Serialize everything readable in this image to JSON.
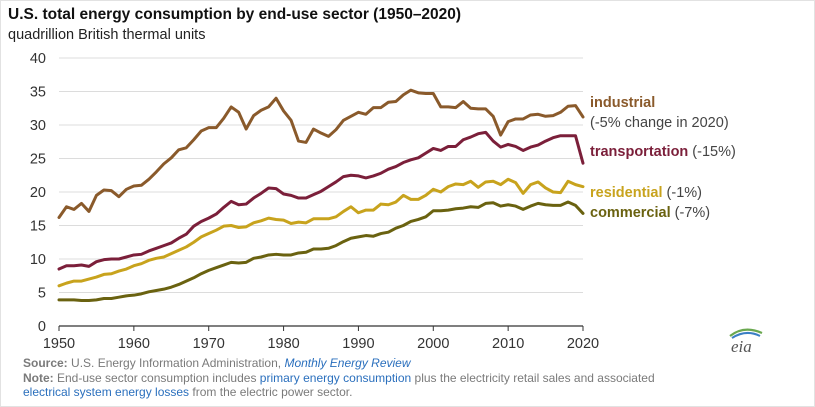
{
  "chart_data": {
    "type": "line",
    "title": "U.S. total energy consumption by end-use sector (1950–2020)",
    "subtitle": "quadrillion British thermal units",
    "xlim": [
      1950,
      2020
    ],
    "ylim": [
      0,
      40
    ],
    "x_ticks": [
      1950,
      1960,
      1970,
      1980,
      1990,
      2000,
      2010,
      2020
    ],
    "y_ticks": [
      0,
      5,
      10,
      15,
      20,
      25,
      30,
      35,
      40
    ],
    "grid": "horizontal",
    "x": [
      1950,
      1951,
      1952,
      1953,
      1954,
      1955,
      1956,
      1957,
      1958,
      1959,
      1960,
      1961,
      1962,
      1963,
      1964,
      1965,
      1966,
      1967,
      1968,
      1969,
      1970,
      1971,
      1972,
      1973,
      1974,
      1975,
      1976,
      1977,
      1978,
      1979,
      1980,
      1981,
      1982,
      1983,
      1984,
      1985,
      1986,
      1987,
      1988,
      1989,
      1990,
      1991,
      1992,
      1993,
      1994,
      1995,
      1996,
      1997,
      1998,
      1999,
      2000,
      2001,
      2002,
      2003,
      2004,
      2005,
      2006,
      2007,
      2008,
      2009,
      2010,
      2011,
      2012,
      2013,
      2014,
      2015,
      2016,
      2017,
      2018,
      2019,
      2020
    ],
    "series": [
      {
        "name": "industrial",
        "annotation": "(-5% change in 2020)",
        "color": "#8a5a2b",
        "values": [
          16.2,
          17.8,
          17.4,
          18.3,
          17.1,
          19.5,
          20.3,
          20.2,
          19.3,
          20.4,
          20.9,
          21.0,
          21.9,
          23.0,
          24.2,
          25.1,
          26.3,
          26.6,
          27.8,
          29.1,
          29.6,
          29.6,
          31.0,
          32.7,
          31.9,
          29.4,
          31.4,
          32.2,
          32.7,
          34.0,
          32.1,
          30.7,
          27.6,
          27.4,
          29.4,
          28.8,
          28.3,
          29.3,
          30.7,
          31.3,
          31.9,
          31.6,
          32.6,
          32.6,
          33.4,
          33.5,
          34.5,
          35.2,
          34.8,
          34.7,
          34.7,
          32.7,
          32.7,
          32.6,
          33.5,
          32.5,
          32.4,
          32.4,
          31.3,
          28.5,
          30.5,
          30.9,
          30.9,
          31.5,
          31.6,
          31.3,
          31.4,
          31.9,
          32.8,
          32.9,
          31.2
        ]
      },
      {
        "name": "transportation",
        "annotation": "(-15%)",
        "color": "#7b1f3a",
        "values": [
          8.5,
          9.0,
          9.0,
          9.1,
          8.9,
          9.6,
          9.9,
          10.0,
          10.0,
          10.3,
          10.6,
          10.7,
          11.2,
          11.6,
          12.0,
          12.4,
          13.1,
          13.7,
          14.9,
          15.6,
          16.1,
          16.7,
          17.7,
          18.6,
          18.1,
          18.2,
          19.1,
          19.8,
          20.6,
          20.5,
          19.7,
          19.5,
          19.1,
          19.1,
          19.6,
          20.1,
          20.8,
          21.5,
          22.3,
          22.5,
          22.4,
          22.1,
          22.4,
          22.8,
          23.4,
          23.8,
          24.4,
          24.8,
          25.1,
          25.8,
          26.5,
          26.2,
          26.8,
          26.8,
          27.8,
          28.2,
          28.7,
          28.9,
          27.6,
          26.7,
          27.1,
          26.8,
          26.2,
          26.7,
          27.0,
          27.6,
          28.1,
          28.4,
          28.4,
          28.4,
          24.3
        ]
      },
      {
        "name": "residential",
        "annotation": "(-1%)",
        "color": "#c8a31d",
        "values": [
          6.0,
          6.4,
          6.7,
          6.7,
          7.0,
          7.3,
          7.7,
          7.8,
          8.2,
          8.5,
          9.0,
          9.3,
          9.8,
          10.1,
          10.3,
          10.8,
          11.3,
          11.8,
          12.5,
          13.3,
          13.8,
          14.3,
          14.9,
          15.0,
          14.7,
          14.8,
          15.4,
          15.7,
          16.1,
          15.9,
          15.8,
          15.3,
          15.5,
          15.4,
          16.0,
          16.0,
          16.0,
          16.3,
          17.1,
          17.8,
          16.9,
          17.3,
          17.3,
          18.2,
          18.1,
          18.5,
          19.5,
          18.9,
          18.9,
          19.5,
          20.4,
          20.0,
          20.8,
          21.2,
          21.1,
          21.6,
          20.7,
          21.5,
          21.6,
          21.1,
          21.9,
          21.4,
          19.8,
          21.1,
          21.5,
          20.6,
          20.0,
          19.9,
          21.6,
          21.1,
          20.8
        ]
      },
      {
        "name": "commercial",
        "annotation": "(-7%)",
        "color": "#6a6210",
        "values": [
          3.9,
          3.9,
          3.9,
          3.8,
          3.8,
          3.9,
          4.1,
          4.1,
          4.3,
          4.5,
          4.6,
          4.8,
          5.1,
          5.3,
          5.5,
          5.8,
          6.2,
          6.7,
          7.2,
          7.8,
          8.3,
          8.7,
          9.1,
          9.5,
          9.4,
          9.5,
          10.1,
          10.3,
          10.6,
          10.7,
          10.6,
          10.6,
          10.9,
          11.0,
          11.5,
          11.5,
          11.6,
          12.0,
          12.6,
          13.1,
          13.3,
          13.5,
          13.4,
          13.8,
          14.0,
          14.6,
          15.0,
          15.6,
          15.9,
          16.3,
          17.2,
          17.2,
          17.3,
          17.5,
          17.6,
          17.8,
          17.7,
          18.3,
          18.4,
          17.9,
          18.1,
          17.9,
          17.4,
          17.9,
          18.3,
          18.1,
          18.0,
          18.0,
          18.5,
          18.0,
          16.8
        ]
      }
    ]
  },
  "footer": {
    "source_label": "Source:",
    "source_text": " U.S. Energy Information Administration, ",
    "source_link": "Monthly Energy Review",
    "note_label": "Note:",
    "note_text1": " End-use sector consumption includes ",
    "note_link1": "primary energy consumption",
    "note_text2": " plus the electricity retail sales and associated",
    "note_link2": "electrical system energy losses",
    "note_text3": " from the electric power sector."
  },
  "logo": {
    "text": "eia"
  }
}
